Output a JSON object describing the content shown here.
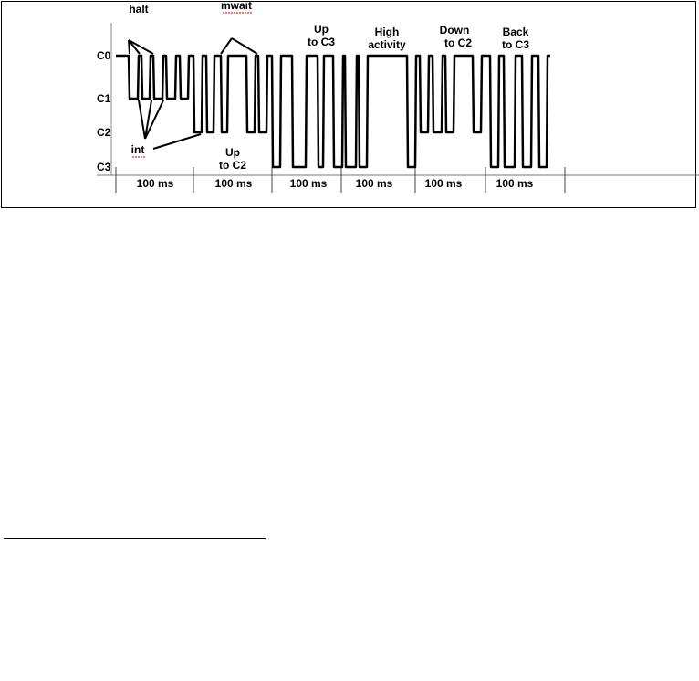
{
  "diagram": {
    "state_labels": [
      "C0",
      "C1",
      "C2",
      "C3"
    ],
    "interval_label": "100 ms",
    "interval_count": 6,
    "annotations": {
      "halt": "halt",
      "int": "int",
      "mwait": "mwait",
      "up_c2": [
        "Up",
        "to C2"
      ],
      "up_c3": [
        "Up",
        "to C3"
      ],
      "high": [
        "High",
        "activity"
      ],
      "down_c2": [
        "Down",
        "to C2"
      ],
      "back_c3": [
        "Back",
        "to C3"
      ]
    },
    "colors": {
      "line": "#000000",
      "spellcheck_underline": "#cc0000"
    }
  }
}
